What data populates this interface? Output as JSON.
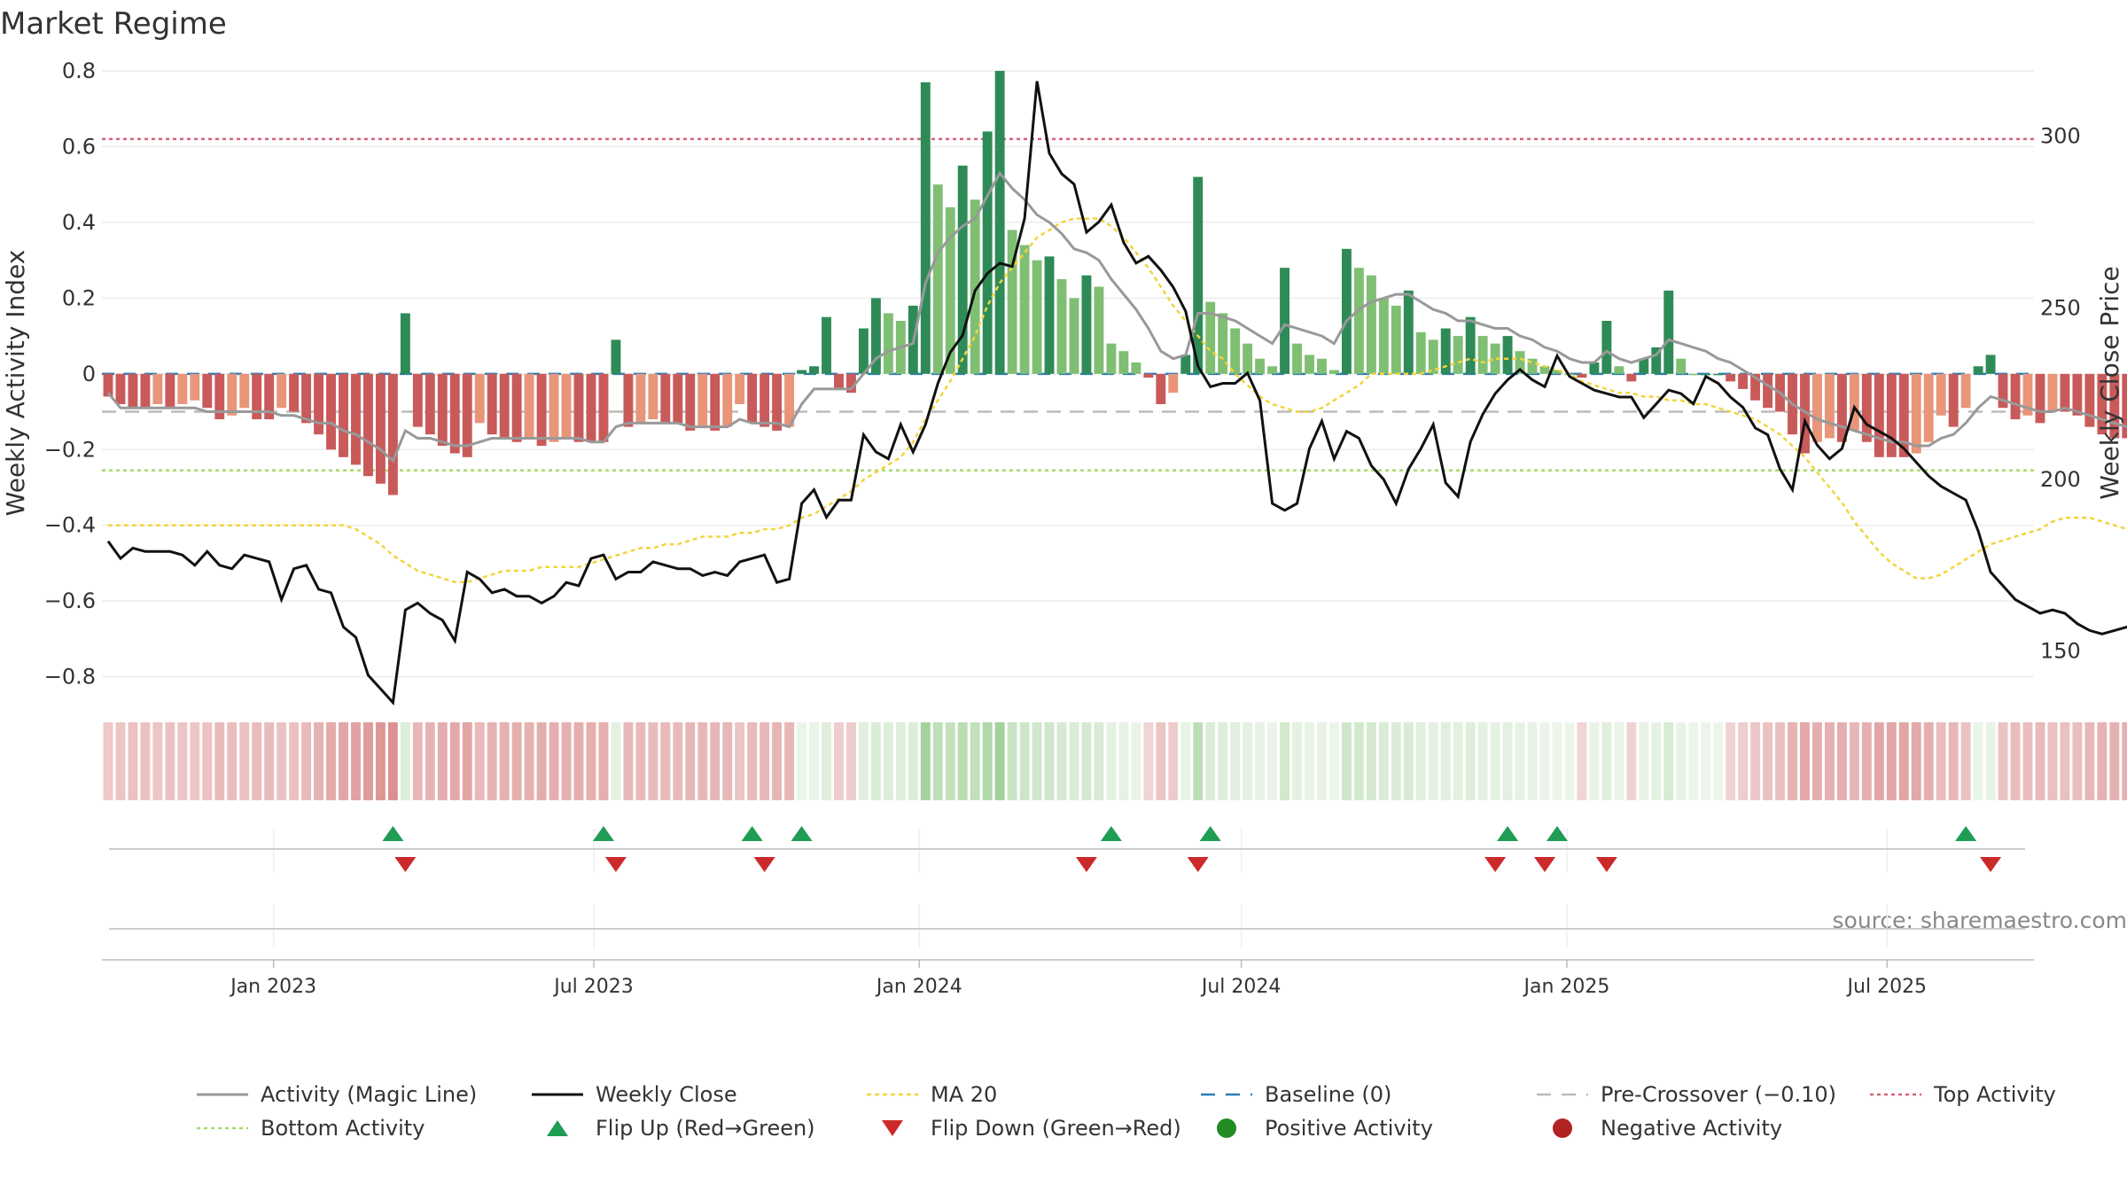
{
  "title": "Market Regime",
  "source": "source: sharemaestro.com",
  "chart_data": {
    "type": "bar",
    "ylabel_left": "Weekly Activity Index",
    "ylabel_right": "Weekly Close Price",
    "left_axis": {
      "ylim": [
        -0.85,
        0.8
      ],
      "ticks": [
        {
          "v": 0.8,
          "label": "0.8"
        },
        {
          "v": 0.6,
          "label": "0.6"
        },
        {
          "v": 0.4,
          "label": "0.4"
        },
        {
          "v": 0.2,
          "label": "0.2"
        },
        {
          "v": 0.0,
          "label": "0"
        },
        {
          "v": -0.2,
          "label": "−0.2"
        },
        {
          "v": -0.4,
          "label": "−0.4"
        },
        {
          "v": -0.6,
          "label": "−0.6"
        },
        {
          "v": -0.8,
          "label": "−0.8"
        }
      ]
    },
    "right_axis": {
      "ylim": [
        137,
        319
      ],
      "ticks": [
        {
          "v": 300,
          "label": "300"
        },
        {
          "v": 250,
          "label": "250"
        },
        {
          "v": 200,
          "label": "200"
        },
        {
          "v": 150,
          "label": "150"
        }
      ]
    },
    "x_range": [
      "2022-09-26",
      "2025-09-22"
    ],
    "x_ticks": [
      {
        "date": "2023-01-01",
        "label": "Jan 2023"
      },
      {
        "date": "2023-07-01",
        "label": "Jul 2023"
      },
      {
        "date": "2024-01-01",
        "label": "Jan 2024"
      },
      {
        "date": "2024-07-01",
        "label": "Jul 2024"
      },
      {
        "date": "2025-01-01",
        "label": "Jan 2025"
      },
      {
        "date": "2025-07-01",
        "label": "Jul 2025"
      }
    ],
    "first_week": "2022-09-26",
    "reference_lines": {
      "top_activity": 0.62,
      "bottom_activity": -0.255,
      "pre_crossover": -0.1,
      "baseline": 0
    },
    "activity": [
      -0.06,
      -0.08,
      -0.09,
      -0.09,
      -0.08,
      -0.09,
      -0.08,
      -0.07,
      -0.09,
      -0.12,
      -0.11,
      -0.09,
      -0.12,
      -0.12,
      -0.09,
      -0.1,
      -0.13,
      -0.16,
      -0.2,
      -0.22,
      -0.24,
      -0.27,
      -0.29,
      -0.32,
      0.16,
      -0.14,
      -0.16,
      -0.19,
      -0.21,
      -0.22,
      -0.13,
      -0.16,
      -0.17,
      -0.18,
      -0.17,
      -0.19,
      -0.18,
      -0.17,
      -0.18,
      -0.18,
      -0.18,
      0.09,
      -0.14,
      -0.13,
      -0.12,
      -0.13,
      -0.13,
      -0.15,
      -0.14,
      -0.15,
      -0.14,
      -0.08,
      -0.13,
      -0.14,
      -0.15,
      -0.14,
      0.01,
      0.02,
      0.15,
      -0.04,
      -0.05,
      0.12,
      0.2,
      0.16,
      0.14,
      0.18,
      0.77,
      0.5,
      0.44,
      0.55,
      0.46,
      0.64,
      0.8,
      0.38,
      0.34,
      0.3,
      0.31,
      0.25,
      0.2,
      0.26,
      0.23,
      0.08,
      0.06,
      0.03,
      -0.01,
      -0.08,
      -0.05,
      0.05,
      0.52,
      0.19,
      0.16,
      0.12,
      0.08,
      0.04,
      0.02,
      0.28,
      0.08,
      0.05,
      0.04,
      0.01,
      0.33,
      0.28,
      0.26,
      0.2,
      0.18,
      0.22,
      0.11,
      0.09,
      0.12,
      0.1,
      0.15,
      0.1,
      0.08,
      0.1,
      0.06,
      0.04,
      0.02,
      0.01,
      0.0,
      -0.01,
      0.03,
      0.14,
      0.02,
      -0.02,
      0.04,
      0.07,
      0.22,
      0.04,
      0.0,
      0.0,
      0.0,
      -0.02,
      -0.04,
      -0.07,
      -0.09,
      -0.1,
      -0.16,
      -0.21,
      -0.18,
      -0.17,
      -0.18,
      -0.15,
      -0.18,
      -0.22,
      -0.22,
      -0.22,
      -0.21,
      -0.18,
      -0.11,
      -0.14,
      -0.09,
      0.02,
      0.05,
      -0.09,
      -0.12,
      -0.11,
      -0.13,
      -0.1,
      -0.1,
      -0.11,
      -0.14,
      -0.16,
      -0.17,
      -0.17,
      -0.19,
      -0.2,
      -0.22,
      -0.23,
      -0.24
    ],
    "magic_line": [
      -0.05,
      -0.09,
      -0.09,
      -0.09,
      -0.09,
      -0.09,
      -0.09,
      -0.09,
      -0.1,
      -0.1,
      -0.1,
      -0.1,
      -0.1,
      -0.1,
      -0.11,
      -0.11,
      -0.12,
      -0.13,
      -0.13,
      -0.15,
      -0.16,
      -0.18,
      -0.2,
      -0.23,
      -0.15,
      -0.17,
      -0.17,
      -0.18,
      -0.19,
      -0.19,
      -0.18,
      -0.17,
      -0.17,
      -0.17,
      -0.17,
      -0.17,
      -0.17,
      -0.17,
      -0.17,
      -0.18,
      -0.18,
      -0.14,
      -0.13,
      -0.13,
      -0.13,
      -0.13,
      -0.13,
      -0.14,
      -0.14,
      -0.14,
      -0.14,
      -0.12,
      -0.13,
      -0.13,
      -0.13,
      -0.14,
      -0.08,
      -0.04,
      -0.04,
      -0.04,
      -0.04,
      0.0,
      0.04,
      0.06,
      0.07,
      0.08,
      0.24,
      0.32,
      0.36,
      0.39,
      0.41,
      0.47,
      0.53,
      0.49,
      0.46,
      0.42,
      0.4,
      0.37,
      0.33,
      0.32,
      0.3,
      0.25,
      0.21,
      0.17,
      0.12,
      0.06,
      0.04,
      0.05,
      0.16,
      0.16,
      0.15,
      0.14,
      0.12,
      0.1,
      0.08,
      0.13,
      0.12,
      0.11,
      0.1,
      0.08,
      0.14,
      0.17,
      0.19,
      0.2,
      0.21,
      0.21,
      0.19,
      0.17,
      0.16,
      0.14,
      0.14,
      0.13,
      0.12,
      0.12,
      0.1,
      0.09,
      0.07,
      0.06,
      0.04,
      0.03,
      0.03,
      0.06,
      0.04,
      0.03,
      0.04,
      0.05,
      0.09,
      0.08,
      0.07,
      0.06,
      0.04,
      0.03,
      0.01,
      -0.01,
      -0.03,
      -0.05,
      -0.08,
      -0.1,
      -0.12,
      -0.13,
      -0.14,
      -0.15,
      -0.16,
      -0.17,
      -0.18,
      -0.18,
      -0.19,
      -0.19,
      -0.17,
      -0.16,
      -0.13,
      -0.09,
      -0.06,
      -0.07,
      -0.08,
      -0.09,
      -0.1,
      -0.1,
      -0.09,
      -0.1,
      -0.11,
      -0.12,
      -0.13,
      -0.14,
      -0.15,
      -0.17,
      -0.18,
      -0.2,
      -0.21
    ],
    "weekly_close": [
      182,
      177,
      180,
      179,
      179,
      179,
      178,
      175,
      179,
      175,
      174,
      178,
      177,
      176,
      165,
      174,
      175,
      168,
      167,
      157,
      154,
      143,
      139,
      135,
      162,
      164,
      161,
      159,
      153,
      173,
      171,
      167,
      168,
      166,
      166,
      164,
      166,
      170,
      169,
      177,
      178,
      171,
      173,
      173,
      176,
      175,
      174,
      174,
      172,
      173,
      172,
      176,
      177,
      178,
      170,
      171,
      193,
      197,
      189,
      194,
      194,
      213,
      208,
      206,
      216,
      208,
      216,
      228,
      237,
      242,
      255,
      260,
      263,
      262,
      276,
      316,
      295,
      289,
      286,
      272,
      275,
      280,
      269,
      263,
      265,
      261,
      256,
      249,
      233,
      227,
      228,
      228,
      231,
      223,
      193,
      191,
      193,
      209,
      217,
      206,
      214,
      212,
      204,
      200,
      193,
      203,
      209,
      216,
      199,
      195,
      211,
      219,
      225,
      229,
      232,
      229,
      227,
      236,
      230,
      228,
      226,
      225,
      224,
      224,
      218,
      222,
      226,
      225,
      222,
      230,
      228,
      224,
      221,
      215,
      213,
      203,
      197,
      217,
      210,
      206,
      209,
      221,
      216,
      214,
      212,
      209,
      205,
      201,
      198,
      196,
      194,
      185,
      173,
      169,
      165,
      163,
      161,
      162,
      161,
      158,
      156,
      155,
      156,
      157,
      155,
      158,
      162,
      170,
      187,
      183,
      191,
      194,
      200,
      194,
      194,
      189,
      189,
      191,
      181,
      170,
      172,
      174,
      176,
      173,
      162,
      157
    ],
    "ma20": [
      -0.4,
      -0.4,
      -0.4,
      -0.4,
      -0.4,
      -0.4,
      -0.4,
      -0.4,
      -0.4,
      -0.4,
      -0.4,
      -0.4,
      -0.4,
      -0.4,
      -0.4,
      -0.4,
      -0.4,
      -0.4,
      -0.4,
      -0.4,
      -0.41,
      -0.43,
      -0.45,
      -0.48,
      -0.5,
      -0.52,
      -0.53,
      -0.54,
      -0.55,
      -0.55,
      -0.54,
      -0.53,
      -0.52,
      -0.52,
      -0.52,
      -0.51,
      -0.51,
      -0.51,
      -0.51,
      -0.5,
      -0.49,
      -0.48,
      -0.47,
      -0.46,
      -0.46,
      -0.45,
      -0.45,
      -0.44,
      -0.43,
      -0.43,
      -0.43,
      -0.42,
      -0.42,
      -0.41,
      -0.41,
      -0.4,
      -0.38,
      -0.37,
      -0.35,
      -0.33,
      -0.31,
      -0.28,
      -0.26,
      -0.24,
      -0.22,
      -0.18,
      -0.12,
      -0.07,
      -0.02,
      0.04,
      0.1,
      0.18,
      0.24,
      0.28,
      0.32,
      0.36,
      0.38,
      0.4,
      0.41,
      0.41,
      0.41,
      0.39,
      0.36,
      0.32,
      0.28,
      0.23,
      0.18,
      0.14,
      0.1,
      0.06,
      0.04,
      0.0,
      -0.03,
      -0.06,
      -0.08,
      -0.09,
      -0.1,
      -0.1,
      -0.09,
      -0.07,
      -0.05,
      -0.03,
      0.0,
      0.0,
      0.0,
      0.0,
      0.0,
      0.01,
      0.02,
      0.03,
      0.04,
      0.03,
      0.04,
      0.04,
      0.04,
      0.03,
      0.02,
      0.01,
      0.0,
      -0.02,
      -0.03,
      -0.04,
      -0.05,
      -0.05,
      -0.06,
      -0.06,
      -0.07,
      -0.07,
      -0.08,
      -0.08,
      -0.09,
      -0.1,
      -0.11,
      -0.12,
      -0.14,
      -0.16,
      -0.19,
      -0.22,
      -0.26,
      -0.3,
      -0.34,
      -0.39,
      -0.43,
      -0.47,
      -0.5,
      -0.52,
      -0.54,
      -0.54,
      -0.53,
      -0.51,
      -0.49,
      -0.47,
      -0.45,
      -0.44,
      -0.43,
      -0.42,
      -0.41,
      -0.39,
      -0.38,
      -0.38,
      -0.38,
      -0.39,
      -0.4,
      -0.41,
      -0.42,
      -0.44,
      -0.45,
      -0.46,
      -0.46,
      -0.47
    ],
    "flips_up": [
      23,
      40,
      52,
      56,
      81,
      89,
      113,
      117,
      150
    ],
    "flips_down": [
      24,
      41,
      53,
      79,
      88,
      112,
      116,
      121,
      152
    ],
    "colors": {
      "strong_green": "#2e8b57",
      "light_green": "#7fbf73",
      "strong_red": "#c95a5a",
      "light_red": "#e8957a",
      "magic_line": "#999999",
      "weekly_close": "#111111",
      "ma20": "#f2d43d",
      "baseline": "#2a7db8",
      "pre_crossover": "#bbbbbb",
      "top_activity": "#d9607a",
      "bottom_activity": "#a6d96a",
      "flip_up": "#1f9d55",
      "flip_down": "#cc2a2a",
      "positive_dot": "#228b22",
      "negative_dot": "#b22222"
    },
    "legend": [
      {
        "key": "magic",
        "label": "Activity (Magic Line)"
      },
      {
        "key": "close",
        "label": "Weekly Close"
      },
      {
        "key": "ma20",
        "label": "MA 20"
      },
      {
        "key": "baseline",
        "label": "Baseline (0)"
      },
      {
        "key": "precross",
        "label": "Pre-Crossover (−0.10)"
      },
      {
        "key": "top",
        "label": "Top Activity"
      },
      {
        "key": "bottom",
        "label": "Bottom Activity"
      },
      {
        "key": "flipup",
        "label": "Flip Up (Red→Green)"
      },
      {
        "key": "flipdown",
        "label": "Flip Down (Green→Red)"
      },
      {
        "key": "posdot",
        "label": "Positive Activity"
      },
      {
        "key": "negdot",
        "label": "Negative Activity"
      }
    ],
    "legend_placement": "bottom"
  }
}
